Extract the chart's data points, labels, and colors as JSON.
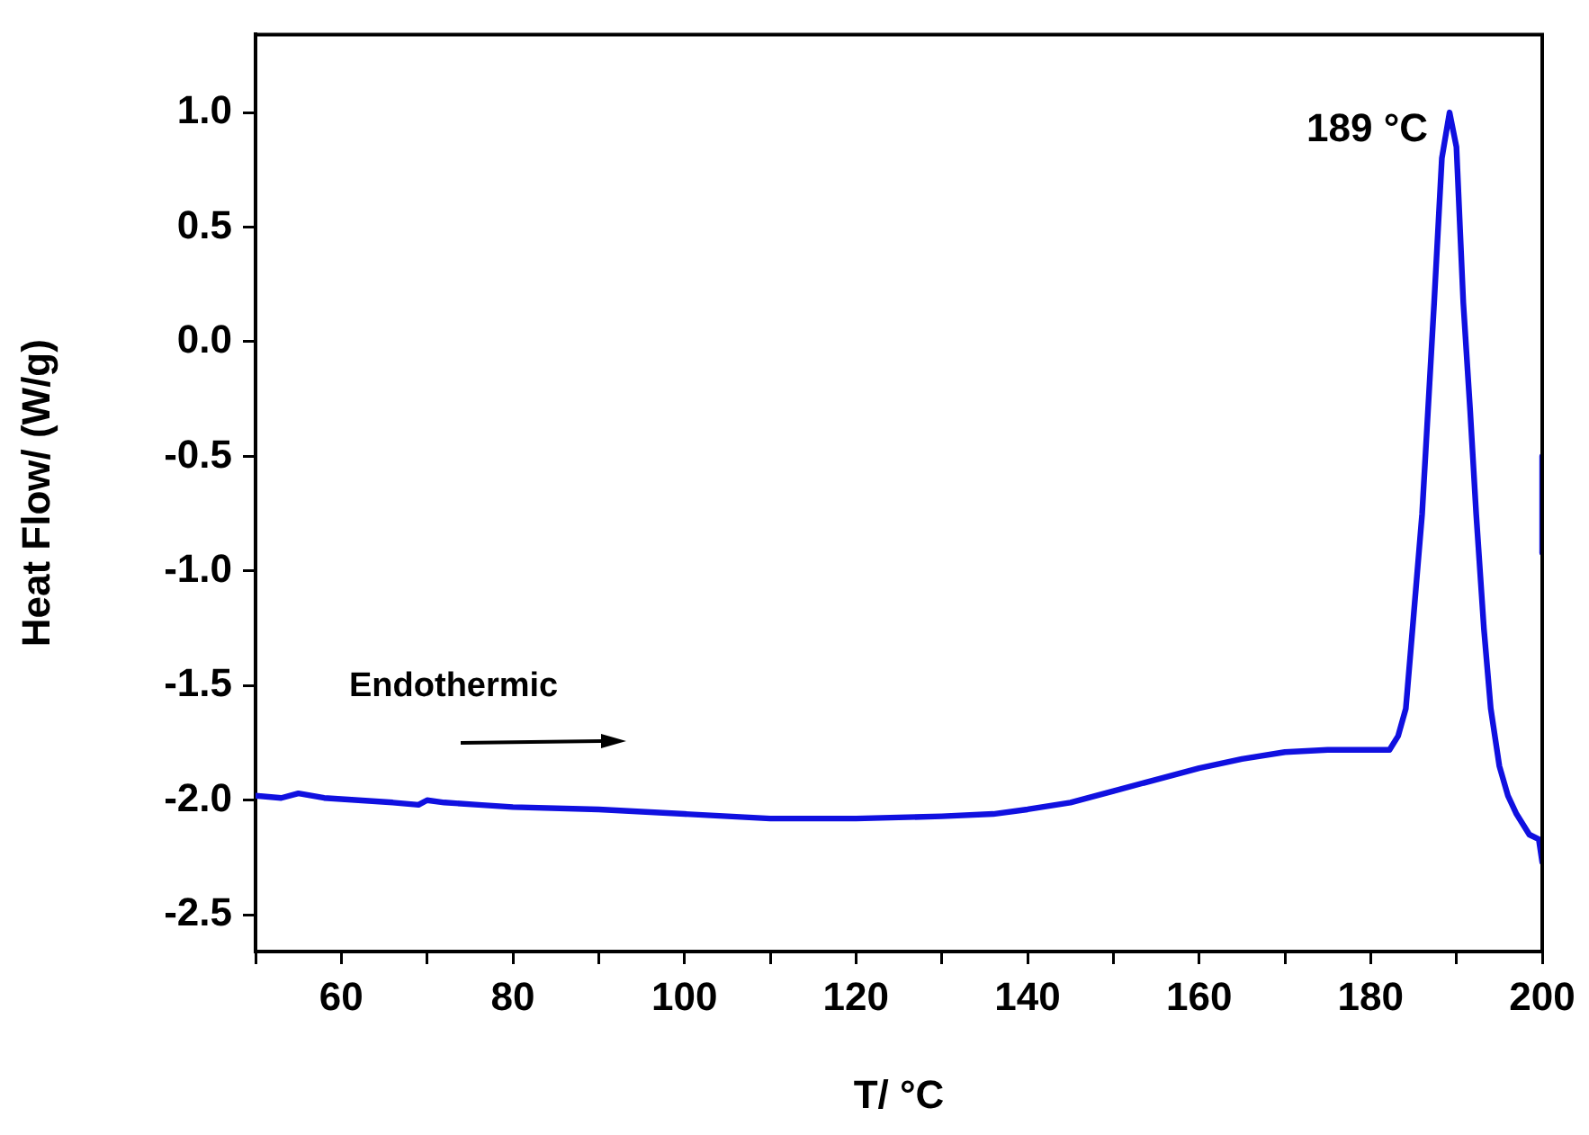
{
  "chart_data": {
    "type": "line",
    "xlabel": "T/ °C",
    "ylabel": "Heat Flow/ (W/g)",
    "xlim": [
      50,
      200
    ],
    "ylim": [
      -2.66,
      1.34
    ],
    "xticks": [
      {
        "value": 50,
        "label": null
      },
      60,
      {
        "value": 70,
        "label": null
      },
      80,
      {
        "value": 90,
        "label": null
      },
      100,
      {
        "value": 110,
        "label": null
      },
      120,
      {
        "value": 130,
        "label": null
      },
      140,
      {
        "value": 150,
        "label": null
      },
      160,
      {
        "value": 170,
        "label": null
      },
      180,
      {
        "value": 190,
        "label": null
      },
      200
    ],
    "yticks": [
      {
        "value": -2.5,
        "label": "-2.5"
      },
      {
        "value": -2.0,
        "label": "-2.0"
      },
      {
        "value": -1.5,
        "label": "-1.5"
      },
      {
        "value": -1.0,
        "label": "-1.0"
      },
      {
        "value": -0.5,
        "label": "-0.5"
      },
      {
        "value": 0.0,
        "label": "0.0"
      },
      {
        "value": 0.5,
        "label": "0.5"
      },
      {
        "value": 1.0,
        "label": "1.0"
      }
    ],
    "grid": false,
    "legend": false,
    "marker": "none",
    "line_style": "solid",
    "annotations": [
      {
        "text": "189 °C",
        "x": 189.2,
        "y": 1.0
      },
      "Endothermic"
    ],
    "series": [
      {
        "color": "#1010e0",
        "x": [
          50,
          53,
          55,
          58,
          62,
          66,
          69,
          70,
          72,
          76,
          80,
          90,
          100,
          110,
          120,
          130,
          136,
          140,
          145,
          150,
          155,
          160,
          165,
          170,
          175,
          180,
          182.2,
          183.2,
          184.1,
          185,
          186,
          187.4,
          188.3,
          189.2,
          190,
          190.8,
          191.6,
          192.3,
          193.2,
          194,
          195,
          196,
          197,
          198.5,
          199.6,
          200
        ],
        "values": [
          -1.98,
          -1.99,
          -1.97,
          -1.99,
          -2.0,
          -2.01,
          -2.02,
          -2.0,
          -2.01,
          -2.02,
          -2.03,
          -2.04,
          -2.06,
          -2.08,
          -2.08,
          -2.07,
          -2.06,
          -2.04,
          -2.01,
          -1.96,
          -1.91,
          -1.86,
          -1.82,
          -1.79,
          -1.78,
          -1.78,
          -1.78,
          -1.72,
          -1.6,
          -1.2,
          -0.75,
          0.17,
          0.8,
          1.0,
          0.85,
          0.17,
          -0.3,
          -0.75,
          -1.25,
          -1.6,
          -1.85,
          -1.98,
          -2.06,
          -2.15,
          -2.17,
          -2.27
        ]
      },
      {
        "color": "#1010e0",
        "x": [
          200,
          200
        ],
        "values": [
          -0.92,
          -0.5
        ]
      }
    ]
  }
}
